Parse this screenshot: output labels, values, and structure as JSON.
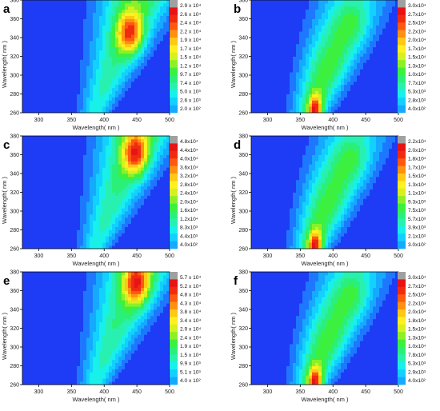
{
  "palette": [
    "#000000",
    "#1a10a8",
    "#1e3cf5",
    "#1e78ff",
    "#16aaff",
    "#12d0ff",
    "#18f0ea",
    "#28f0b0",
    "#2af07a",
    "#3cf040",
    "#8cf028",
    "#d6f020",
    "#fff020",
    "#ffc816",
    "#ff9012",
    "#ff5810",
    "#f02c10",
    "#e61414",
    "#a0a0a0"
  ],
  "chart_data": [
    {
      "id": "a",
      "panel_label": "a",
      "type": "heatmap",
      "xlabel": "Wavelength( nm )",
      "ylabel": "Wavelength( nm )",
      "xlim": [
        275,
        500
      ],
      "ylim": [
        260,
        380
      ],
      "xticks": [
        "300",
        "350",
        "400",
        "450",
        "500"
      ],
      "yticks": [
        "260",
        "280",
        "300",
        "320",
        "340",
        "360",
        "380"
      ],
      "colorbar": [
        "2.0 x 10²",
        "2.6 x 10³",
        "5.0 x 10³",
        "7.4 x 10³",
        "9.7 x 10³",
        "1.2 x 10⁴",
        "1.5 x 10⁴",
        "1.7 x 10⁴",
        "1.9 x 10⁴",
        "2.2 x 10⁴",
        "2.4 x 10⁴",
        "2.6 x 10⁴",
        "2.9 x 10⁴"
      ],
      "peaks": [
        {
          "ex": 440,
          "em": 345,
          "value": 29000
        }
      ]
    },
    {
      "id": "b",
      "panel_label": "b",
      "type": "heatmap",
      "xlabel": "Wavelength( nm )",
      "ylabel": "Wavelength( nm )",
      "xlim": [
        275,
        500
      ],
      "ylim": [
        260,
        380
      ],
      "xticks": [
        "300",
        "350",
        "400",
        "450",
        "500"
      ],
      "yticks": [
        "260",
        "280",
        "300",
        "320",
        "340",
        "360",
        "380"
      ],
      "colorbar": [
        "4.0x10²",
        "2.8x10³",
        "5.3x10³",
        "7.7x10³",
        "1.0x10⁴",
        "1.3x10⁴",
        "1.5x10⁴",
        "1.7x10⁴",
        "2.0x10⁴",
        "2.2x10⁴",
        "2.5x10⁴",
        "2.7x10⁴",
        "3.0x10⁴"
      ],
      "peaks": [
        {
          "ex": 372,
          "em": 268,
          "value": 30000
        }
      ]
    },
    {
      "id": "c",
      "panel_label": "c",
      "type": "heatmap",
      "xlabel": "Wavelength( nm )",
      "ylabel": "Wavelength( nm )",
      "xlim": [
        275,
        500
      ],
      "ylim": [
        260,
        380
      ],
      "xticks": [
        "300",
        "350",
        "400",
        "450",
        "500"
      ],
      "yticks": [
        "260",
        "280",
        "300",
        "320",
        "340",
        "360",
        "380"
      ],
      "colorbar": [
        "4.0x10²",
        "4.4x10³",
        "8.3x10³",
        "1.2x10⁴",
        "1.6x10⁴",
        "2.0x10⁴",
        "2.4x10⁴",
        "2.8x10⁴",
        "3.2x10⁴",
        "3.6x10⁴",
        "4.0x10⁴",
        "4.4x10⁴",
        "4.8x10⁴"
      ],
      "peaks": [
        {
          "ex": 448,
          "em": 362,
          "value": 48000
        }
      ]
    },
    {
      "id": "d",
      "panel_label": "d",
      "type": "heatmap",
      "xlabel": "Wavelength( nm )",
      "ylabel": "Wavelength( nm )",
      "xlim": [
        275,
        500
      ],
      "ylim": [
        260,
        380
      ],
      "xticks": [
        "300",
        "350",
        "400",
        "450",
        "500"
      ],
      "yticks": [
        "260",
        "280",
        "300",
        "320",
        "340",
        "360",
        "380"
      ],
      "colorbar": [
        "3.0x10²",
        "2.1x10³",
        "3.9x10³",
        "5.7x10³",
        "7.5x10³",
        "9.3x10³",
        "1.1x10⁴",
        "1.3x10⁴",
        "1.5x10⁴",
        "1.7x10⁴",
        "1.8x10⁴",
        "2.0x10⁴",
        "2.2x10⁴"
      ],
      "peaks": [
        {
          "ex": 372,
          "em": 268,
          "value": 22000
        }
      ]
    },
    {
      "id": "e",
      "panel_label": "e",
      "type": "heatmap",
      "xlabel": "Wavelength( nm )",
      "ylabel": "Wavelength( nm )",
      "xlim": [
        275,
        500
      ],
      "ylim": [
        260,
        380
      ],
      "xticks": [
        "300",
        "350",
        "400",
        "450",
        "500"
      ],
      "yticks": [
        "260",
        "280",
        "300",
        "320",
        "340",
        "360",
        "380"
      ],
      "colorbar": [
        "4.0 x 10²",
        "5.1 x 10³",
        "9.9 x 10³",
        "1.5 x 10⁴",
        "1.9 x 10⁴",
        "2.4 x 10⁴",
        "2.9 x 10⁴",
        "3.4 x 10⁴",
        "3.8 x 10⁴",
        "4.3 x 10⁴",
        "4.8 x 10⁴",
        "5.2 x 10⁴",
        "5.7 x 10⁴"
      ],
      "peaks": [
        {
          "ex": 450,
          "em": 368,
          "value": 57000
        }
      ]
    },
    {
      "id": "f",
      "panel_label": "f",
      "type": "heatmap",
      "xlabel": "Wavelength( nm )",
      "ylabel": "Wavelength( nm )",
      "xlim": [
        275,
        500
      ],
      "ylim": [
        260,
        380
      ],
      "xticks": [
        "300",
        "350",
        "400",
        "450",
        "500"
      ],
      "yticks": [
        "260",
        "280",
        "300",
        "320",
        "340",
        "360",
        "380"
      ],
      "colorbar": [
        "4.0x10²",
        "2.9x10³",
        "5.3x10³",
        "7.8x10³",
        "1.0x10⁴",
        "1.3x10⁴",
        "1.5x10⁴",
        "1.8x10⁴",
        "2.0x10⁴",
        "2.2x10⁴",
        "2.5x10⁴",
        "2.7x10⁴",
        "3.0x10⁴"
      ],
      "peaks": [
        {
          "ex": 372,
          "em": 268,
          "value": 30000
        }
      ]
    }
  ]
}
